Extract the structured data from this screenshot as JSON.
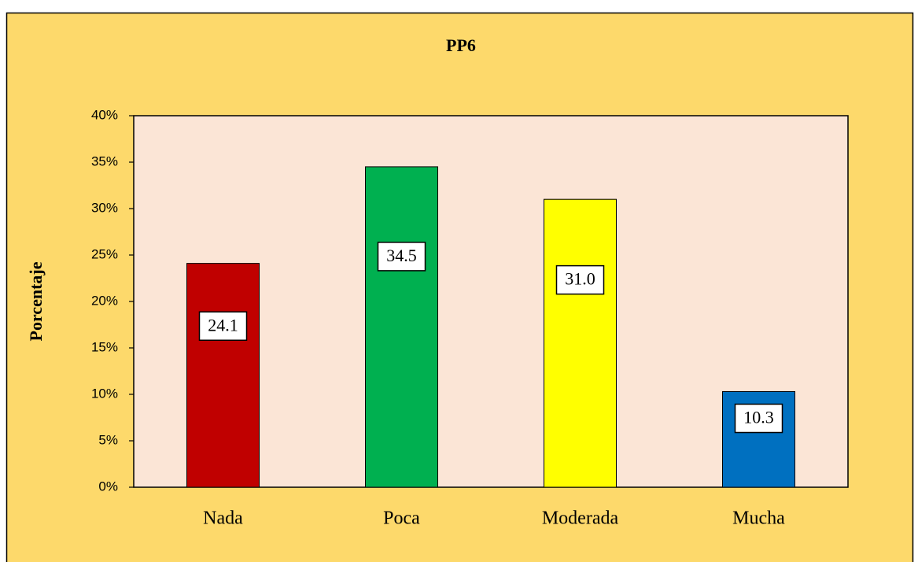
{
  "chart_data": {
    "type": "bar",
    "title": "PP6",
    "y_label": "Porcentaje",
    "categories": [
      "Nada",
      "Poca",
      "Moderada",
      "Mucha"
    ],
    "values": [
      24.1,
      34.5,
      31.0,
      10.3
    ],
    "value_labels": [
      "24.1",
      "34.5",
      "31.0",
      "10.3"
    ],
    "colors": [
      "#c00000",
      "#00b050",
      "#ffff00",
      "#0070c0"
    ],
    "ylim": [
      0,
      40
    ],
    "yticks": [
      {
        "value": 0,
        "label": "0%"
      },
      {
        "value": 5,
        "label": "5%"
      },
      {
        "value": 10,
        "label": "10%"
      },
      {
        "value": 15,
        "label": "15%"
      },
      {
        "value": 20,
        "label": "20%"
      },
      {
        "value": 25,
        "label": "25%"
      },
      {
        "value": 30,
        "label": "30%"
      },
      {
        "value": 35,
        "label": "35%"
      },
      {
        "value": 40,
        "label": "40%"
      }
    ],
    "grid": false
  }
}
